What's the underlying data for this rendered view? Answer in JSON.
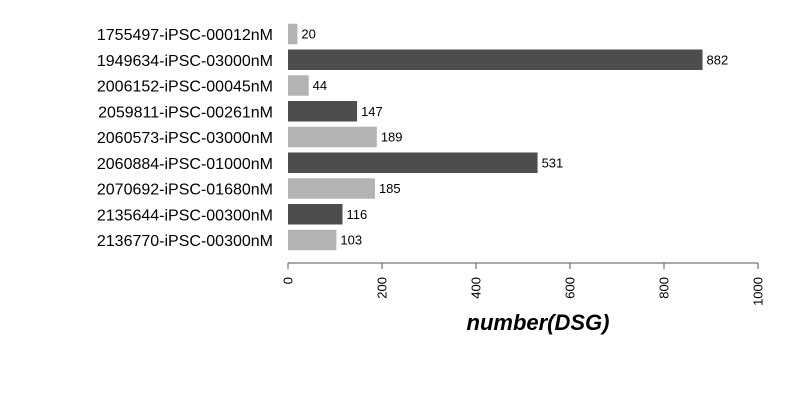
{
  "chart_data": {
    "type": "bar",
    "orientation": "horizontal",
    "categories": [
      "1755497-iPSC-00012nM",
      "1949634-iPSC-03000nM",
      "2006152-iPSC-00045nM",
      "2059811-iPSC-00261nM",
      "2060573-iPSC-03000nM",
      "2060884-iPSC-01000nM",
      "2070692-iPSC-01680nM",
      "2135644-iPSC-00300nM",
      "2136770-iPSC-00300nM"
    ],
    "values": [
      20,
      882,
      44,
      147,
      189,
      531,
      185,
      116,
      103
    ],
    "value_labels": [
      "20",
      "882",
      "44",
      "147",
      "189",
      "531",
      "185",
      "116",
      "103"
    ],
    "bar_colors": [
      "#b3b3b3",
      "#4d4d4d",
      "#b3b3b3",
      "#4d4d4d",
      "#b3b3b3",
      "#4d4d4d",
      "#b3b3b3",
      "#4d4d4d",
      "#b3b3b3"
    ],
    "xlabel": "number(DSG)",
    "xlim": [
      0,
      1000
    ],
    "x_ticks": [
      0,
      200,
      400,
      600,
      800,
      1000
    ],
    "x_tick_labels": [
      "0",
      "200",
      "400",
      "600",
      "800",
      "1000"
    ],
    "grid": false,
    "legend": "none"
  }
}
